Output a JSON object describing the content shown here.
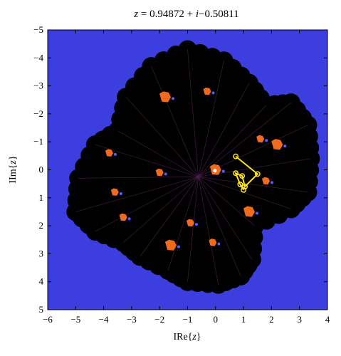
{
  "chart_data": {
    "type": "heatmap",
    "title": "z = 0.94872 + i−0.50811",
    "title_parts": {
      "var": "z",
      "rest": " = 0.94872 + ",
      "imag_unit": "i",
      "tail": "−0.50811"
    },
    "xlabel": "IRe{z}",
    "ylabel": "IIm{z}",
    "xlim": [
      -6,
      4
    ],
    "ylim": [
      -5,
      5
    ],
    "y_axis_inverted": true,
    "x_ticks": [
      -6,
      -5,
      -4,
      -3,
      -2,
      -1,
      0,
      1,
      2,
      3,
      4
    ],
    "y_ticks": [
      -5,
      -4,
      -3,
      -2,
      -1,
      0,
      1,
      2,
      3,
      4,
      5
    ],
    "grid": false,
    "colors": {
      "background": "#3d3ee0",
      "set_interior": "#000000",
      "bulb_fill": "#f26a1b",
      "spot": "#5a5cff",
      "orbit": "#ffe51a"
    },
    "fractal_outline": [
      [
        -5.0,
        1.5
      ],
      [
        -4.9,
        0.3
      ],
      [
        -4.3,
        -0.9
      ],
      [
        -3.5,
        -1.4
      ],
      [
        -3.2,
        -2.6
      ],
      [
        -2.3,
        -3.7
      ],
      [
        -1.0,
        -4.3
      ],
      [
        0.3,
        -3.9
      ],
      [
        1.2,
        -3.1
      ],
      [
        1.8,
        -2.3
      ],
      [
        2.7,
        -2.4
      ],
      [
        3.3,
        -1.6
      ],
      [
        3.4,
        -0.4
      ],
      [
        3.3,
        0.8
      ],
      [
        2.7,
        1.4
      ],
      [
        1.4,
        2.0
      ],
      [
        1.3,
        3.2
      ],
      [
        0.9,
        3.8
      ],
      [
        0.1,
        4.1
      ],
      [
        -1.0,
        4.0
      ],
      [
        -1.7,
        3.6
      ],
      [
        -2.7,
        3.1
      ],
      [
        -3.3,
        2.6
      ],
      [
        -4.3,
        2.2
      ]
    ],
    "bulb_regions": [
      [
        -1.8,
        -2.6
      ],
      [
        -0.3,
        -2.8
      ],
      [
        1.6,
        -1.1
      ],
      [
        2.2,
        -0.9
      ],
      [
        -3.8,
        -0.6
      ],
      [
        -2.0,
        0.1
      ],
      [
        0.0,
        0.0
      ],
      [
        -3.6,
        0.8
      ],
      [
        -3.3,
        1.7
      ],
      [
        -1.6,
        2.7
      ],
      [
        -0.1,
        2.6
      ],
      [
        1.8,
        0.4
      ],
      [
        1.2,
        1.5
      ],
      [
        -0.9,
        1.9
      ]
    ],
    "orbit_points": [
      [
        0.72,
        -0.48
      ],
      [
        1.5,
        0.15
      ],
      [
        1.05,
        0.6
      ],
      [
        0.95,
        0.22
      ],
      [
        0.72,
        0.12
      ],
      [
        0.88,
        0.52
      ],
      [
        1.0,
        0.72
      ]
    ]
  }
}
